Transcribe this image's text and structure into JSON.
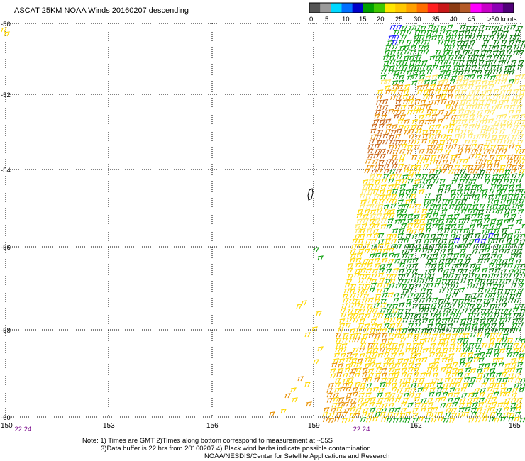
{
  "title": "ASCAT 25KM NOAA Winds 20160207 descending",
  "colorbar": {
    "labels": [
      "0",
      "5",
      "10",
      "15",
      "20",
      "25",
      "30",
      "35",
      "40",
      "45",
      ">50 knots"
    ],
    "colors": [
      "#555555",
      "#9a9a9a",
      "#00d8ff",
      "#0070ff",
      "#0000c8",
      "#00a000",
      "#40c800",
      "#ffe600",
      "#ffc800",
      "#ffa000",
      "#ff6e00",
      "#ff2020",
      "#c81818",
      "#8c3c14",
      "#b45a28",
      "#ff00ff",
      "#c800c8",
      "#8c00b4",
      "#500078"
    ]
  },
  "map": {
    "lon_labels": [
      "150",
      "153",
      "156",
      "159",
      "162",
      "165"
    ],
    "lat_labels": [
      "-50",
      "-52",
      "-54",
      "-56",
      "-58",
      "-60"
    ],
    "lon_range": [
      150,
      165
    ],
    "lat_range": [
      -60,
      -50
    ],
    "time_labels": [
      {
        "text": "22:24",
        "lon": 150.3
      },
      {
        "text": "22:24",
        "lon": 160.2
      }
    ],
    "swath_colors": {
      "green": "#10a010",
      "darkgreen": "#0a7a0a",
      "yellow": "#ffd800",
      "lightyellow": "#ffe860",
      "orange": "#e89000",
      "darkorange": "#c86414",
      "blue": "#2020ff"
    }
  },
  "notes": {
    "line1": "Note: 1) Times are GMT 2)Times along bottom correspond to measurement at ~55S",
    "line2": "3)Data buffer is 22 hrs from 20160207 4) Black wind barbs indicate possible contamination",
    "line3": "NOAA/NESDIS/Center for Satellite Applications and Research"
  }
}
